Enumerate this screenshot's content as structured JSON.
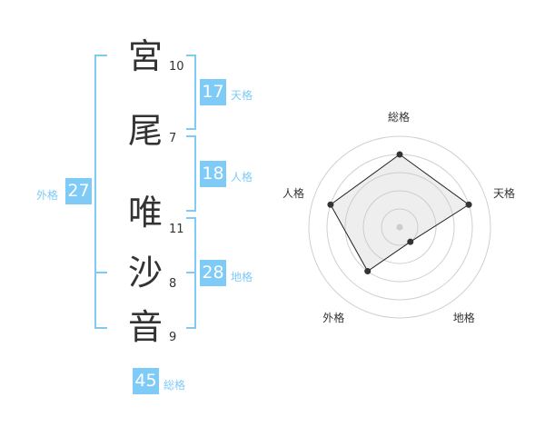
{
  "name": {
    "characters": [
      {
        "char": "宮",
        "strokes": "10"
      },
      {
        "char": "尾",
        "strokes": "7"
      },
      {
        "char": "唯",
        "strokes": "11"
      },
      {
        "char": "沙",
        "strokes": "8"
      },
      {
        "char": "音",
        "strokes": "9"
      }
    ]
  },
  "fortunes": {
    "tenkaku": {
      "label": "天格",
      "value": "17"
    },
    "jinkaku": {
      "label": "人格",
      "value": "18"
    },
    "chikaku": {
      "label": "地格",
      "value": "28"
    },
    "gaikaku": {
      "label": "外格",
      "value": "27"
    },
    "soukaku": {
      "label": "総格",
      "value": "45"
    }
  },
  "accent_color": "#7fcbf7",
  "chart_data": {
    "type": "radar",
    "axes": [
      "総格",
      "天格",
      "地格",
      "外格",
      "人格"
    ],
    "values": [
      4,
      4,
      1,
      3,
      4
    ],
    "range": [
      0,
      5
    ],
    "rings": 5
  }
}
